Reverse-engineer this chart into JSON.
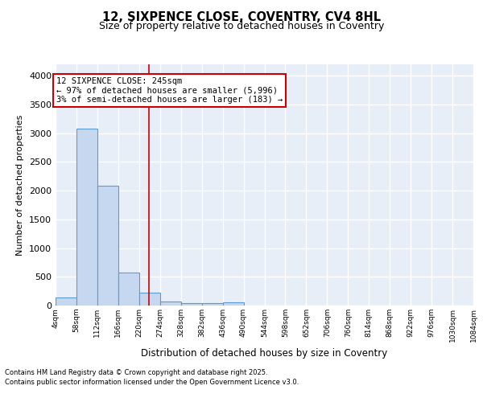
{
  "title_line1": "12, SIXPENCE CLOSE, COVENTRY, CV4 8HL",
  "title_line2": "Size of property relative to detached houses in Coventry",
  "xlabel": "Distribution of detached houses by size in Coventry",
  "ylabel": "Number of detached properties",
  "bin_labels": [
    "4sqm",
    "58sqm",
    "112sqm",
    "166sqm",
    "220sqm",
    "274sqm",
    "328sqm",
    "382sqm",
    "436sqm",
    "490sqm",
    "544sqm",
    "598sqm",
    "652sqm",
    "706sqm",
    "760sqm",
    "814sqm",
    "868sqm",
    "922sqm",
    "976sqm",
    "1030sqm",
    "1084sqm"
  ],
  "bin_edges": [
    4,
    58,
    112,
    166,
    220,
    274,
    328,
    382,
    436,
    490,
    544,
    598,
    652,
    706,
    760,
    814,
    868,
    922,
    976,
    1030,
    1084
  ],
  "bar_heights": [
    140,
    3080,
    2080,
    570,
    220,
    70,
    45,
    40,
    50,
    0,
    0,
    0,
    0,
    0,
    0,
    0,
    0,
    0,
    0,
    0
  ],
  "bar_color": "#c5d8f0",
  "bar_edge_color": "#5b9bd5",
  "vline_x": 245,
  "vline_color": "#cc0000",
  "annotation_text": "12 SIXPENCE CLOSE: 245sqm\n← 97% of detached houses are smaller (5,996)\n3% of semi-detached houses are larger (183) →",
  "annotation_box_color": "#ffffff",
  "annotation_box_edge": "#cc0000",
  "ylim": [
    0,
    4200
  ],
  "yticks": [
    0,
    500,
    1000,
    1500,
    2000,
    2500,
    3000,
    3500,
    4000
  ],
  "bg_color": "#e8eef8",
  "grid_color": "#ffffff",
  "footer_line1": "Contains HM Land Registry data © Crown copyright and database right 2025.",
  "footer_line2": "Contains public sector information licensed under the Open Government Licence v3.0."
}
